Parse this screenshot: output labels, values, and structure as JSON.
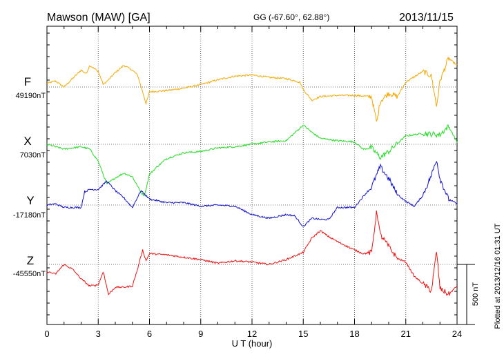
{
  "header": {
    "station": "Mawson (MAW)  [GA]",
    "coords": "GG (-67.60°,  62.88°)",
    "date": "2013/11/15"
  },
  "footer": {
    "plotted": "Plotted at 2013/12/16 01:31  UT",
    "scale_label": "500 nT"
  },
  "colors": {
    "F": "#f5a800",
    "X": "#22dd22",
    "Y": "#1010cc",
    "Z": "#ee1111"
  },
  "chart_data": {
    "type": "line",
    "title": "Mawson (MAW)  [GA]",
    "xlabel": "U T (hour)",
    "ylabel": "",
    "xlim": [
      0,
      24
    ],
    "x_ticks": [
      "0",
      "3",
      "6",
      "9",
      "12",
      "15",
      "18",
      "21",
      "24"
    ],
    "grid": true,
    "scale_bar_nT": 500,
    "series": [
      {
        "name": "F",
        "baseline_label": "49190nT",
        "baseline_nT": 49190,
        "points": [
          [
            0,
            30
          ],
          [
            0.5,
            50
          ],
          [
            1,
            0
          ],
          [
            1.5,
            70
          ],
          [
            2,
            140
          ],
          [
            2.3,
            110
          ],
          [
            2.5,
            180
          ],
          [
            3,
            130
          ],
          [
            3.3,
            20
          ],
          [
            3.6,
            60
          ],
          [
            4,
            120
          ],
          [
            4.5,
            180
          ],
          [
            5,
            140
          ],
          [
            5.3,
            100
          ],
          [
            5.6,
            -40
          ],
          [
            5.8,
            -140
          ],
          [
            6,
            -40
          ],
          [
            7,
            -30
          ],
          [
            8,
            -10
          ],
          [
            9,
            20
          ],
          [
            10,
            60
          ],
          [
            11,
            90
          ],
          [
            12,
            100
          ],
          [
            13,
            80
          ],
          [
            14,
            70
          ],
          [
            14.8,
            40
          ],
          [
            15,
            -20
          ],
          [
            15.5,
            -110
          ],
          [
            16,
            -80
          ],
          [
            17,
            -70
          ],
          [
            18,
            -70
          ],
          [
            19,
            -80
          ],
          [
            19.3,
            -300
          ],
          [
            19.5,
            -120
          ],
          [
            20,
            -50
          ],
          [
            20.5,
            -80
          ],
          [
            21,
            40
          ],
          [
            22,
            130
          ],
          [
            22.5,
            90
          ],
          [
            22.8,
            -160
          ],
          [
            23,
            50
          ],
          [
            23.5,
            240
          ],
          [
            24,
            180
          ]
        ]
      },
      {
        "name": "X",
        "baseline_label": "7030nT",
        "baseline_nT": 7030,
        "points": [
          [
            0,
            0
          ],
          [
            0.5,
            -20
          ],
          [
            1,
            -40
          ],
          [
            1.5,
            -30
          ],
          [
            2,
            -20
          ],
          [
            2.5,
            -40
          ],
          [
            3,
            -140
          ],
          [
            3.5,
            -330
          ],
          [
            4,
            -280
          ],
          [
            4.5,
            -240
          ],
          [
            5,
            -270
          ],
          [
            5.5,
            -400
          ],
          [
            5.7,
            -430
          ],
          [
            6,
            -250
          ],
          [
            6.5,
            -180
          ],
          [
            7,
            -120
          ],
          [
            8,
            -70
          ],
          [
            9,
            -60
          ],
          [
            10,
            -30
          ],
          [
            11,
            -20
          ],
          [
            12,
            0
          ],
          [
            13,
            20
          ],
          [
            14,
            30
          ],
          [
            15,
            160
          ],
          [
            15.5,
            100
          ],
          [
            16,
            50
          ],
          [
            17,
            30
          ],
          [
            18,
            20
          ],
          [
            18.5,
            -40
          ],
          [
            19,
            -30
          ],
          [
            19.5,
            -110
          ],
          [
            20,
            -60
          ],
          [
            21,
            70
          ],
          [
            22,
            90
          ],
          [
            23,
            80
          ],
          [
            23.5,
            150
          ],
          [
            24,
            20
          ]
        ]
      },
      {
        "name": "Y",
        "baseline_label": "-17180nT",
        "baseline_nT": -17180,
        "points": [
          [
            0,
            0
          ],
          [
            0.5,
            10
          ],
          [
            1,
            -20
          ],
          [
            2,
            -20
          ],
          [
            2.2,
            110
          ],
          [
            2.5,
            130
          ],
          [
            3,
            130
          ],
          [
            3.5,
            200
          ],
          [
            4,
            120
          ],
          [
            4.5,
            60
          ],
          [
            5,
            -20
          ],
          [
            5.5,
            120
          ],
          [
            6,
            50
          ],
          [
            7,
            20
          ],
          [
            8,
            20
          ],
          [
            9,
            -10
          ],
          [
            10,
            0
          ],
          [
            11,
            -10
          ],
          [
            12,
            -80
          ],
          [
            13,
            -110
          ],
          [
            14,
            -80
          ],
          [
            14.5,
            -90
          ],
          [
            15,
            -180
          ],
          [
            15.5,
            -110
          ],
          [
            16,
            -120
          ],
          [
            16.5,
            -120
          ],
          [
            17,
            -20
          ],
          [
            18,
            -20
          ],
          [
            18.5,
            70
          ],
          [
            19,
            150
          ],
          [
            19.5,
            320
          ],
          [
            20,
            220
          ],
          [
            20.5,
            90
          ],
          [
            21,
            30
          ],
          [
            21.5,
            -10
          ],
          [
            22,
            80
          ],
          [
            22.5,
            250
          ],
          [
            22.8,
            380
          ],
          [
            23,
            220
          ],
          [
            23.5,
            50
          ],
          [
            24,
            10
          ]
        ]
      },
      {
        "name": "Z",
        "baseline_label": "-45550nT",
        "baseline_nT": -45550,
        "points": [
          [
            0,
            -60
          ],
          [
            0.5,
            -80
          ],
          [
            1,
            0
          ],
          [
            1.5,
            -40
          ],
          [
            2,
            -120
          ],
          [
            2.5,
            -180
          ],
          [
            3,
            -170
          ],
          [
            3.3,
            -60
          ],
          [
            3.6,
            -250
          ],
          [
            4,
            -190
          ],
          [
            4.5,
            -190
          ],
          [
            5,
            -180
          ],
          [
            5.3,
            -40
          ],
          [
            5.6,
            120
          ],
          [
            5.8,
            30
          ],
          [
            6,
            90
          ],
          [
            7,
            80
          ],
          [
            8,
            60
          ],
          [
            9,
            40
          ],
          [
            10,
            10
          ],
          [
            11,
            30
          ],
          [
            12,
            20
          ],
          [
            13,
            0
          ],
          [
            14,
            40
          ],
          [
            15,
            100
          ],
          [
            15.5,
            220
          ],
          [
            16,
            280
          ],
          [
            16.5,
            230
          ],
          [
            17,
            190
          ],
          [
            18,
            120
          ],
          [
            18.5,
            90
          ],
          [
            19,
            100
          ],
          [
            19.3,
            450
          ],
          [
            19.5,
            250
          ],
          [
            20,
            150
          ],
          [
            20.5,
            50
          ],
          [
            21,
            20
          ],
          [
            21.5,
            -100
          ],
          [
            22,
            -160
          ],
          [
            22.5,
            -220
          ],
          [
            22.8,
            110
          ],
          [
            23,
            -200
          ],
          [
            23.5,
            -250
          ],
          [
            24,
            -180
          ]
        ]
      }
    ]
  }
}
